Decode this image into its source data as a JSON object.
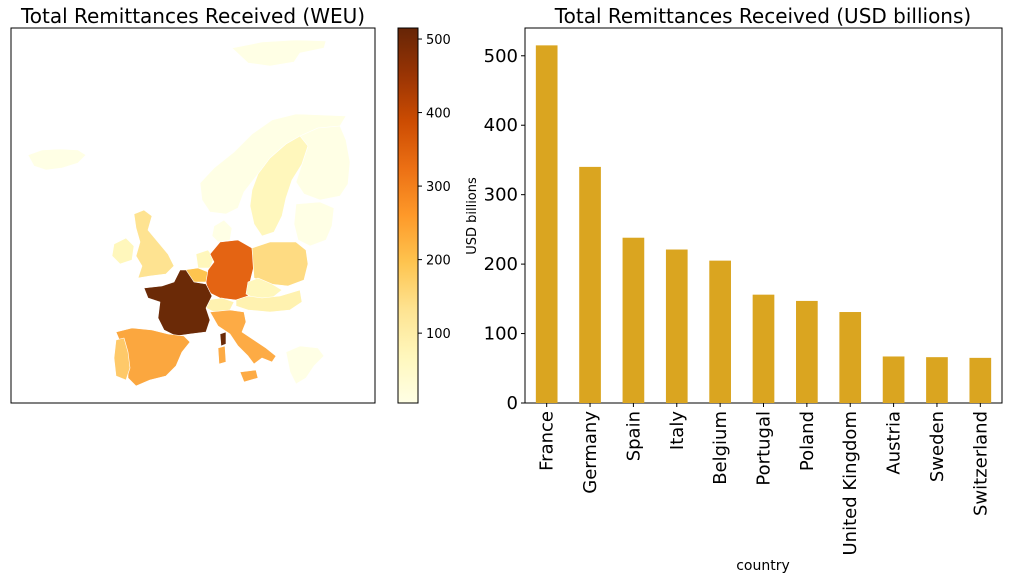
{
  "chart_data": [
    {
      "type": "choropleth-map",
      "title": "Total Remittances Received (WEU)",
      "colorbar": {
        "label": "USD billions",
        "range": [
          5,
          515
        ],
        "ticks": [
          100,
          200,
          300,
          400,
          500
        ],
        "colormap": [
          "#ffffe5",
          "#fff7bc",
          "#fee391",
          "#fec44f",
          "#fe9929",
          "#ec7014",
          "#cc4c02",
          "#993404",
          "#662506"
        ]
      },
      "regions": [
        {
          "name": "France",
          "value": 515
        },
        {
          "name": "Germany",
          "value": 340
        },
        {
          "name": "Spain",
          "value": 238
        },
        {
          "name": "Italy",
          "value": 221
        },
        {
          "name": "Belgium",
          "value": 205
        },
        {
          "name": "Portugal",
          "value": 156
        },
        {
          "name": "Poland",
          "value": 147
        },
        {
          "name": "United Kingdom",
          "value": 131
        },
        {
          "name": "Austria",
          "value": 67
        },
        {
          "name": "Sweden",
          "value": 66
        },
        {
          "name": "Switzerland",
          "value": 65
        },
        {
          "name": "Netherlands",
          "value": 40
        },
        {
          "name": "Norway",
          "value": 20
        },
        {
          "name": "Finland",
          "value": 15
        },
        {
          "name": "Ireland",
          "value": 40
        },
        {
          "name": "Iceland",
          "value": 5
        },
        {
          "name": "Denmark",
          "value": 20
        },
        {
          "name": "Czechia",
          "value": 60
        },
        {
          "name": "Greece",
          "value": 30
        },
        {
          "name": "Baltics",
          "value": 15
        }
      ]
    },
    {
      "type": "bar",
      "title": "Total Remittances Received (USD billions)",
      "xlabel": "country",
      "ylabel": "",
      "ylim": [
        0,
        540
      ],
      "yticks": [
        0,
        100,
        200,
        300,
        400,
        500
      ],
      "bar_color": "#daa520",
      "categories": [
        "France",
        "Germany",
        "Spain",
        "Italy",
        "Belgium",
        "Portugal",
        "Poland",
        "United Kingdom",
        "Austria",
        "Sweden",
        "Switzerland"
      ],
      "values": [
        515,
        340,
        238,
        221,
        205,
        156,
        147,
        131,
        67,
        66,
        65
      ]
    }
  ]
}
